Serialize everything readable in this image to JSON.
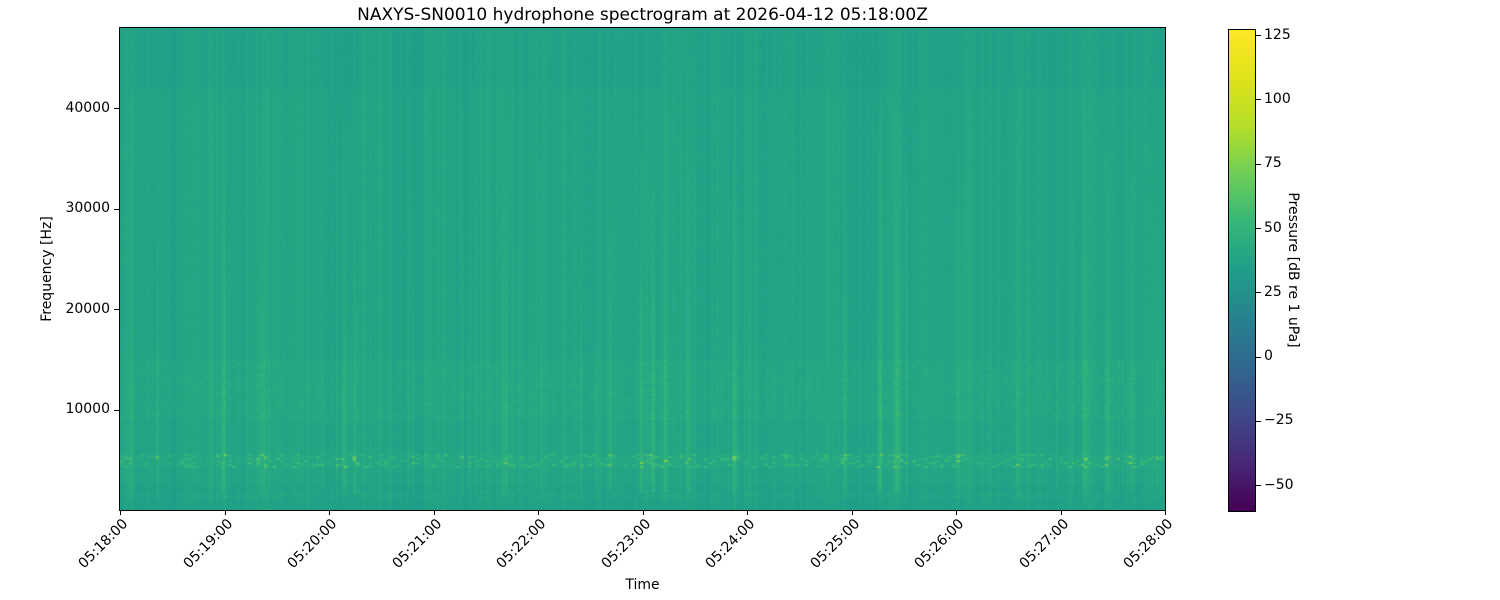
{
  "chart_data": {
    "type": "heatmap",
    "subtype": "spectrogram",
    "title": "NAXYS-SN0010 hydrophone spectrogram at 2026-04-12 05:18:00Z",
    "xlabel": "Time",
    "ylabel": "Frequency [Hz]",
    "grid": false,
    "colormap": "viridis",
    "time_span_seconds": 600,
    "x_ticks": [
      {
        "label": "05:18:00",
        "t_s": 0
      },
      {
        "label": "05:19:00",
        "t_s": 60
      },
      {
        "label": "05:20:00",
        "t_s": 120
      },
      {
        "label": "05:21:00",
        "t_s": 180
      },
      {
        "label": "05:22:00",
        "t_s": 240
      },
      {
        "label": "05:23:00",
        "t_s": 300
      },
      {
        "label": "05:24:00",
        "t_s": 360
      },
      {
        "label": "05:25:00",
        "t_s": 420
      },
      {
        "label": "05:26:00",
        "t_s": 480
      },
      {
        "label": "05:27:00",
        "t_s": 540
      },
      {
        "label": "05:28:00",
        "t_s": 600
      }
    ],
    "x_tick_rotation_deg": 45,
    "ylim_hz": [
      0,
      48000
    ],
    "y_ticks": [
      {
        "label": "10000",
        "value": 10000
      },
      {
        "label": "20000",
        "value": 20000
      },
      {
        "label": "30000",
        "value": 30000
      },
      {
        "label": "40000",
        "value": 40000
      }
    ],
    "colorbar": {
      "label": "Pressure [dB re 1 uPa]",
      "vmin_db": -60,
      "vmax_db": 127,
      "ticks": [
        {
          "label": "125",
          "value": 125
        },
        {
          "label": "100",
          "value": 100
        },
        {
          "label": "75",
          "value": 75
        },
        {
          "label": "50",
          "value": 50
        },
        {
          "label": "25",
          "value": 25
        },
        {
          "label": "0",
          "value": 0
        },
        {
          "label": "−25",
          "value": -25
        },
        {
          "label": "−50",
          "value": -50
        }
      ]
    },
    "texture": {
      "seed": 7,
      "background_db": 38,
      "column_noise_db": 2.0,
      "patch_noise_db": 1.2,
      "pixel_noise_db": 0.7,
      "click_sigma_s": 1.0,
      "minor_click_probability": 0.1,
      "minor_click_max_db": 5,
      "bands": [
        {
          "name": "click-band",
          "freq_lo_hz": 4200,
          "freq_hi_hz": 5600,
          "speckle_probability": 0.32,
          "speckle_boost_db": 28,
          "base_boost_db": 1.5
        },
        {
          "name": "mid-band",
          "freq_lo_hz": 9000,
          "freq_hi_hz": 15000,
          "speckle_probability": 0.55,
          "speckle_boost_db": 6,
          "base_boost_db": 0.8
        },
        {
          "name": "low-band",
          "freq_lo_hz": 0,
          "freq_hi_hz": 2400,
          "speckle_probability": 0.45,
          "speckle_boost_db": 4,
          "base_boost_db": -2.5
        },
        {
          "name": "bottom-bright-row",
          "freq_lo_hz": 1100,
          "freq_hi_hz": 1900,
          "speckle_probability": 0.5,
          "speckle_boost_db": 5,
          "base_boost_db": 1
        },
        {
          "name": "top-band",
          "freq_lo_hz": 42000,
          "freq_hi_hz": 48000,
          "speckle_probability": 0,
          "speckle_boost_db": 0,
          "base_boost_db": -1.5
        }
      ],
      "clicks": [
        {
          "t_s": 6,
          "amp_db": 5
        },
        {
          "t_s": 59,
          "amp_db": 7
        },
        {
          "t_s": 80,
          "amp_db": 5
        },
        {
          "t_s": 129,
          "amp_db": 8
        },
        {
          "t_s": 135,
          "amp_db": 6
        },
        {
          "t_s": 221,
          "amp_db": 7
        },
        {
          "t_s": 281,
          "amp_db": 6
        },
        {
          "t_s": 299,
          "amp_db": 9
        },
        {
          "t_s": 306,
          "amp_db": 10
        },
        {
          "t_s": 313,
          "amp_db": 7
        },
        {
          "t_s": 326,
          "amp_db": 8
        },
        {
          "t_s": 353,
          "amp_db": 9
        },
        {
          "t_s": 416,
          "amp_db": 6
        },
        {
          "t_s": 436,
          "amp_db": 12
        },
        {
          "t_s": 446,
          "amp_db": 10
        },
        {
          "t_s": 481,
          "amp_db": 6
        },
        {
          "t_s": 554,
          "amp_db": 8
        },
        {
          "t_s": 567,
          "amp_db": 8
        },
        {
          "t_s": 580,
          "amp_db": 6
        }
      ]
    }
  }
}
